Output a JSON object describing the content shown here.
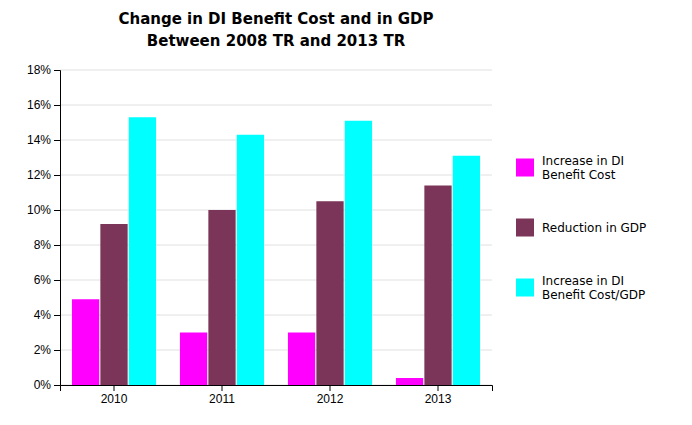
{
  "chart_data": {
    "type": "bar",
    "title": "Change in DI Benefit Cost and in GDP",
    "subtitle": "Between 2008 TR and 2013 TR",
    "categories": [
      "2010",
      "2011",
      "2012",
      "2013"
    ],
    "series": [
      {
        "name": "Increase in DI\nBenefit Cost",
        "color": "#FF00FF",
        "values": [
          0.049,
          0.03,
          0.03,
          0.004
        ]
      },
      {
        "name": "Reduction in GDP",
        "color": "#7B3558",
        "values": [
          0.092,
          0.1,
          0.105,
          0.114
        ]
      },
      {
        "name": "Increase in DI\nBenefit Cost/GDP",
        "color": "#00FFFF",
        "values": [
          0.153,
          0.143,
          0.151,
          0.131
        ]
      }
    ],
    "ylim": [
      0,
      0.18
    ],
    "yticks": [
      {
        "value": 0.0,
        "label": "0%"
      },
      {
        "value": 0.02,
        "label": "2%"
      },
      {
        "value": 0.04,
        "label": "4%"
      },
      {
        "value": 0.06,
        "label": "6%"
      },
      {
        "value": 0.08,
        "label": "8%"
      },
      {
        "value": 0.1,
        "label": "10%"
      },
      {
        "value": 0.12,
        "label": "12%"
      },
      {
        "value": 0.14,
        "label": "14%"
      },
      {
        "value": 0.16,
        "label": "16%"
      },
      {
        "value": 0.18,
        "label": "18%"
      }
    ],
    "grid": true,
    "legend": "right"
  }
}
